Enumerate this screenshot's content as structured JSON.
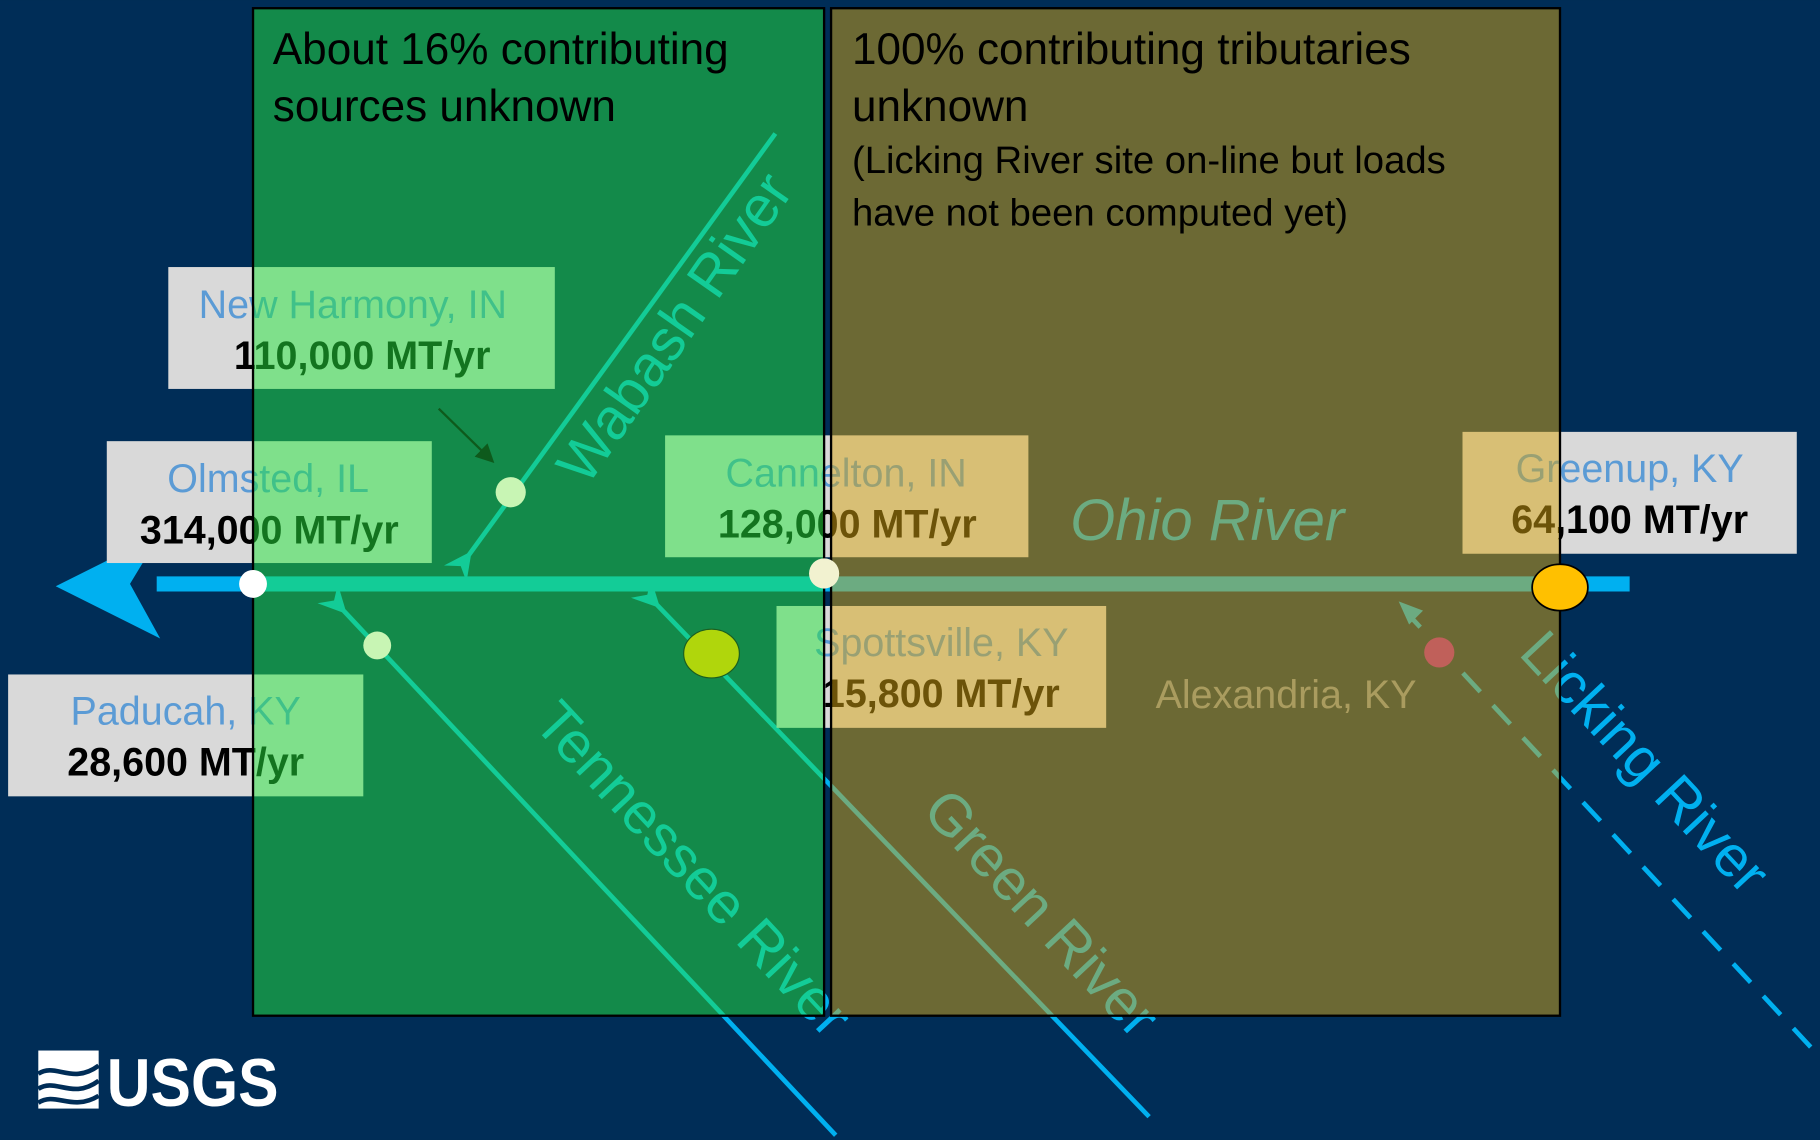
{
  "panels": [
    {
      "lines": [
        "About 16% contributing",
        "sources unknown"
      ]
    },
    {
      "lines": [
        "100% contributing tributaries",
        "unknown"
      ],
      "note": [
        "(Licking River site on-line but loads",
        "have not been computed yet)"
      ]
    }
  ],
  "rivers": [
    "Ohio River",
    "Wabash River",
    "Tennessee River",
    "Green River",
    "Licking River"
  ],
  "sites": [
    {
      "name": "New Harmony, IN",
      "load": "110,000 MT/yr"
    },
    {
      "name": "Olmsted, IL",
      "load": "314,000 MT/yr"
    },
    {
      "name": "Cannelton, IN",
      "load": "128,000 MT/yr"
    },
    {
      "name": "Greenup, KY",
      "load": "64,100 MT/yr"
    },
    {
      "name": "Spottsville, KY",
      "load": "15,800 MT/yr"
    },
    {
      "name": "Paducah, KY",
      "load": "28,600 MT/yr"
    },
    {
      "name": "Alexandria, KY"
    }
  ],
  "logo": "USGS"
}
